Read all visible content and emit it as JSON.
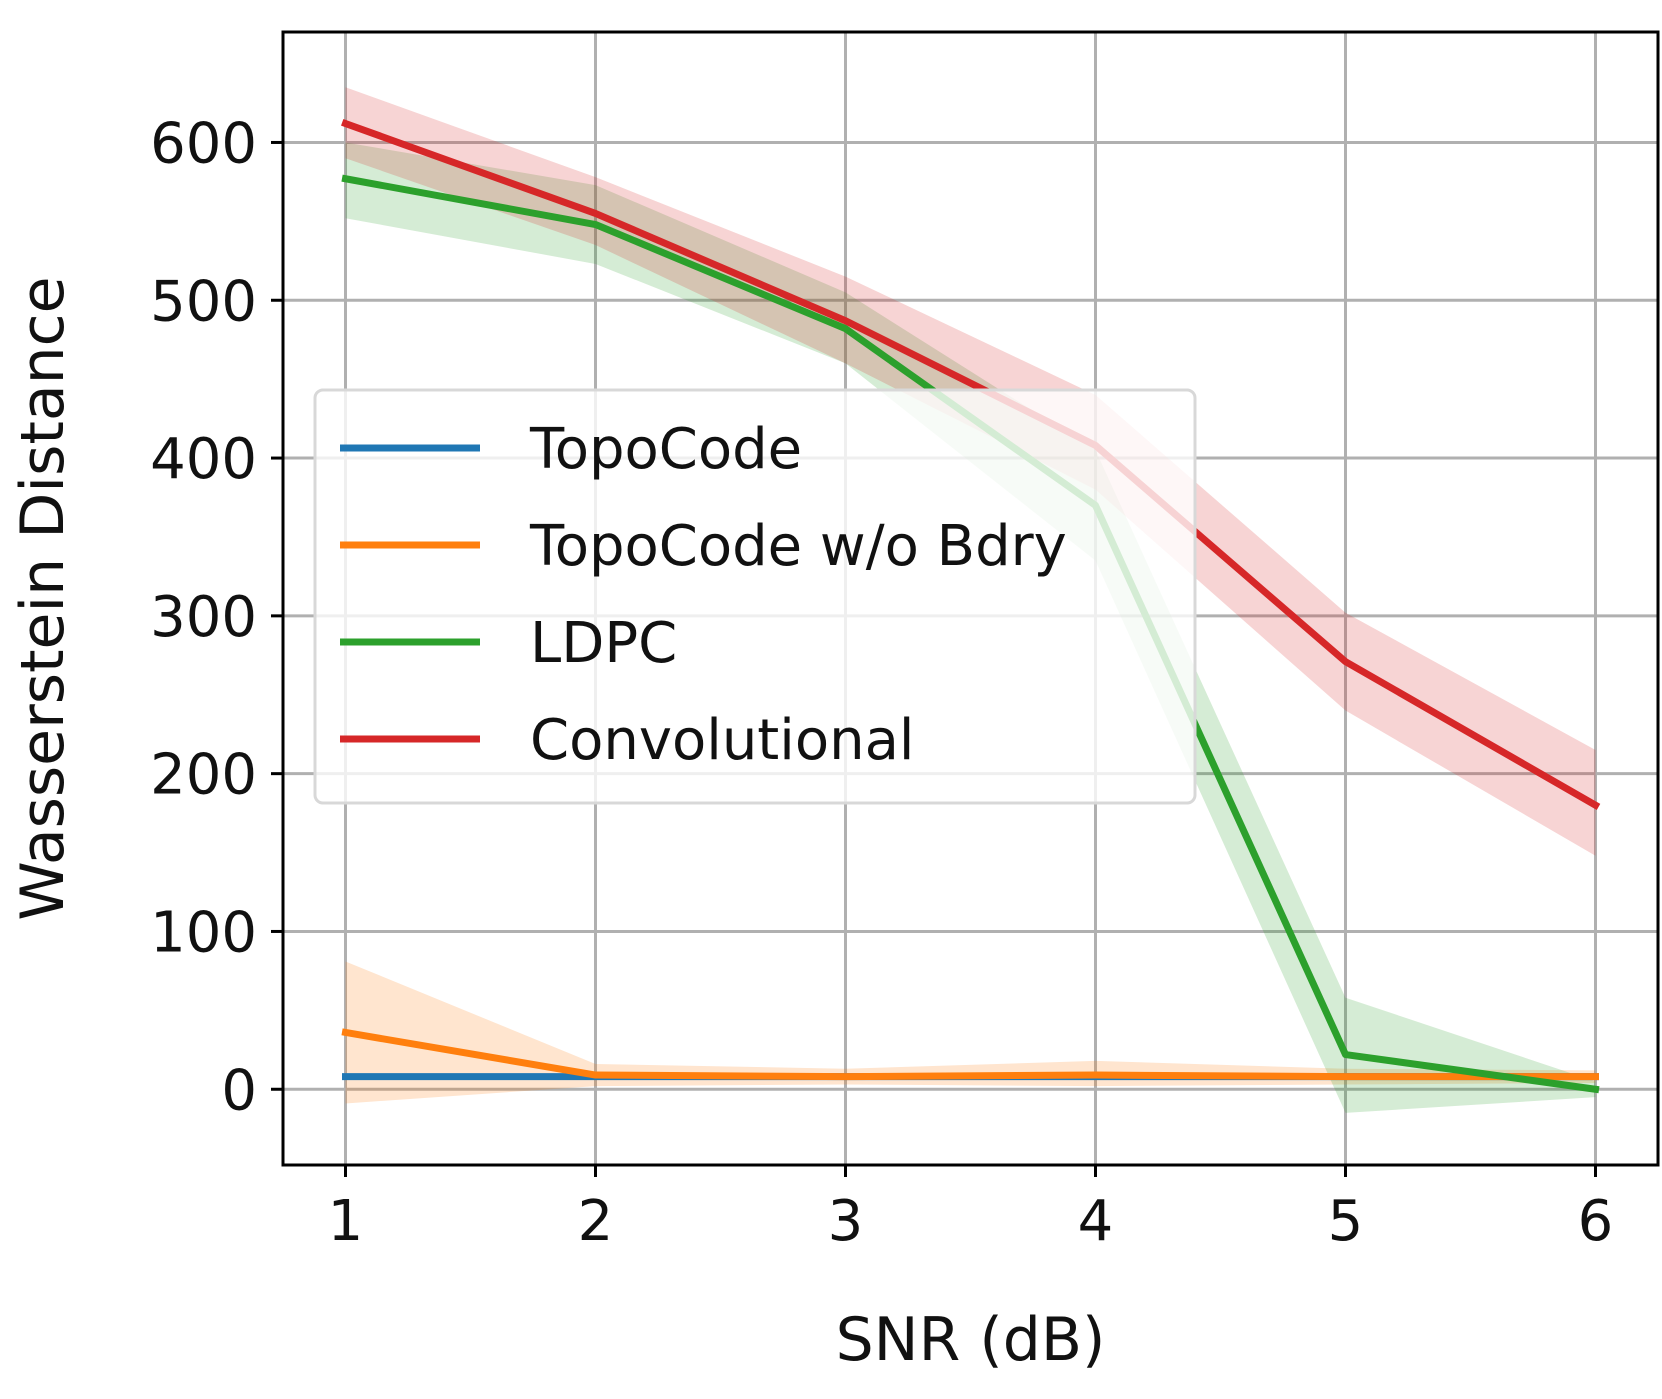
{
  "chart_data": {
    "type": "line",
    "title": "",
    "xlabel": "SNR (dB)",
    "ylabel": "Wasserstein Distance",
    "x": [
      1,
      2,
      3,
      4,
      5,
      6
    ],
    "xticks": [
      "1",
      "2",
      "3",
      "4",
      "5",
      "6"
    ],
    "yticks": [
      "0",
      "100",
      "200",
      "300",
      "400",
      "500",
      "600"
    ],
    "ylim": [
      -48,
      670
    ],
    "xlim": [
      0.75,
      6.25
    ],
    "grid": true,
    "legend_position": "center-left",
    "series": [
      {
        "name": "TopoCode",
        "color": "#1f77b4",
        "values": [
          8,
          8,
          8,
          8,
          8,
          8
        ],
        "lower": [
          8,
          8,
          8,
          8,
          8,
          8
        ],
        "upper": [
          8,
          8,
          8,
          8,
          8,
          8
        ]
      },
      {
        "name": "TopoCode w/o Bdry",
        "color": "#ff7f0e",
        "values": [
          36,
          9,
          8,
          9,
          8,
          8
        ],
        "lower": [
          -9,
          2,
          3,
          2,
          3,
          4
        ],
        "upper": [
          81,
          16,
          13,
          18,
          13,
          12
        ]
      },
      {
        "name": "LDPC",
        "color": "#2ca02c",
        "values": [
          577,
          548,
          482,
          370,
          22,
          0
        ],
        "lower": [
          552,
          523,
          460,
          335,
          -15,
          -5
        ],
        "upper": [
          600,
          573,
          505,
          405,
          58,
          5
        ]
      },
      {
        "name": "Convolutional",
        "color": "#d62728",
        "values": [
          612,
          555,
          487,
          408,
          271,
          180
        ],
        "lower": [
          590,
          535,
          460,
          380,
          240,
          148
        ],
        "upper": [
          635,
          578,
          515,
          440,
          302,
          215
        ]
      }
    ]
  }
}
